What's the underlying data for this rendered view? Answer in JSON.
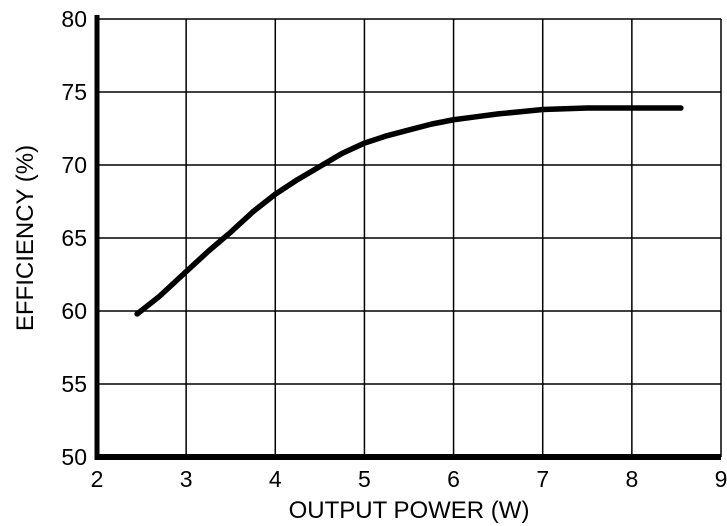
{
  "chart_data": {
    "type": "line",
    "title": "",
    "xlabel": "OUTPUT POWER (W)",
    "ylabel": "EFFICIENCY (%)",
    "xlim": [
      2,
      9
    ],
    "ylim": [
      50,
      80
    ],
    "xticks": [
      2,
      3,
      4,
      5,
      6,
      7,
      8,
      9
    ],
    "yticks": [
      50,
      55,
      60,
      65,
      70,
      75,
      80
    ],
    "grid": true,
    "legend_position": "none",
    "series": [
      {
        "name": "efficiency-vs-output-power",
        "color": "#000000",
        "x": [
          2.45,
          2.7,
          3.0,
          3.25,
          3.5,
          3.75,
          4.0,
          4.25,
          4.5,
          4.75,
          5.0,
          5.25,
          5.5,
          5.75,
          6.0,
          6.25,
          6.5,
          6.75,
          7.0,
          7.25,
          7.5,
          8.0,
          8.55
        ],
        "y": [
          59.8,
          61.0,
          62.7,
          64.1,
          65.4,
          66.8,
          68.0,
          69.0,
          69.9,
          70.8,
          71.5,
          72.0,
          72.4,
          72.8,
          73.1,
          73.3,
          73.5,
          73.65,
          73.8,
          73.85,
          73.9,
          73.9,
          73.9
        ]
      }
    ]
  },
  "colors": {
    "background": "#ffffff",
    "axis": "#000000",
    "grid": "#000000",
    "curve": "#000000",
    "text": "#000000"
  }
}
